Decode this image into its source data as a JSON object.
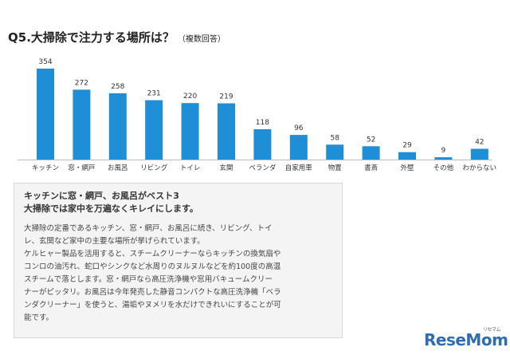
{
  "title": "Q5.大掃除で注力する場所は？",
  "title_note": "（複数回答）",
  "chart_data": {
    "type": "bar",
    "categories": [
      "キッチン",
      "窓・網戸",
      "お風呂",
      "リビング",
      "トイレ",
      "玄関",
      "ベランダ",
      "自家用車",
      "物置",
      "書斎",
      "外壁",
      "その他",
      "わからない"
    ],
    "values": [
      354,
      272,
      258,
      231,
      220,
      219,
      118,
      96,
      58,
      52,
      29,
      9,
      42
    ],
    "ylim": [
      0,
      354
    ],
    "grid": false,
    "legend": "none",
    "bar_color": "#1e8fd6"
  },
  "summary": {
    "headline_line1": "キッチンに窓・網戸、お風呂がベスト3",
    "headline_line2": "大掃除では家中を万遍なくキレイにします。",
    "paragraph_lines": [
      "大掃除の定番であるキッチン、窓・網戸、お風呂に続き、リビング、トイ",
      "レ、玄関など家中の主要な場所が挙げられています。",
      "ケルヒャー製品を活用すると、スチームクリーナーならキッチンの換気扇や",
      "コンロの油汚れ、蛇口やシンクなど水周りのヌルヌルなどを約100度の高温",
      "スチームで落とします。窓・網戸なら高圧洗浄機や窓用バキュームクリー",
      "ナーがピッタリ。お風呂は今年発売した静音コンパクトな高圧洗浄機「ベラ",
      "ンダクリーナー」を使うと、湯垢やヌメリを水だけできれいにすることが可",
      "能です。"
    ]
  },
  "logo": {
    "text": "ReseMom",
    "kana": "リセマム"
  }
}
